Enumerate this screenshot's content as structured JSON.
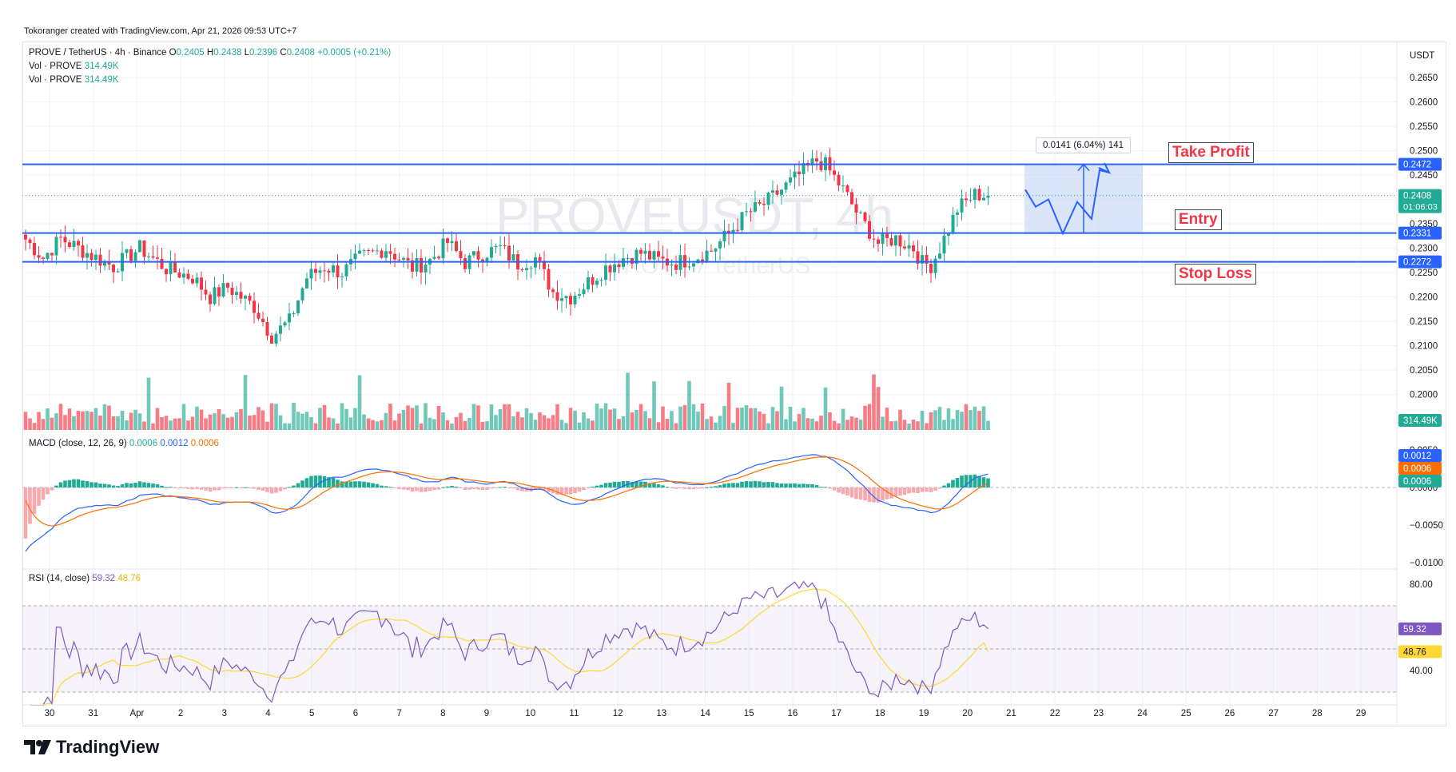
{
  "header": "Tokoranger created with TradingView.com, Apr 21, 2026 09:53 UTC+7",
  "brand": "TradingView",
  "watermark": "PROVEUSDT, 4h",
  "watermark_sub": "PROVE / TetherUS",
  "legend": {
    "symbol": "PROVE / TetherUS · 4h · Binance",
    "O": "0.2405",
    "H": "0.2438",
    "L": "0.2396",
    "C": "0.2408",
    "change": "+0.0005 (+0.21%)",
    "vol1_label": "Vol · PROVE",
    "vol1_value": "314.49K",
    "vol2_label": "Vol · PROVE",
    "vol2_value": "314.49K",
    "macd_label": "MACD (close, 12, 26, 9)",
    "macd_hist": "0.0006",
    "macd_line": "0.0012",
    "macd_signal": "0.0006",
    "rsi_label": "RSI (14, close)",
    "rsi_value": "59.32",
    "rsi_ma": "48.76"
  },
  "annotations": {
    "take_profit": "Take Profit",
    "entry": "Entry",
    "stop_loss": "Stop Loss",
    "measure": "0.0141 (6.04%) 141"
  },
  "price_tags": {
    "currency": "USDT",
    "tp": "0.2472",
    "entry": "0.2331",
    "sl": "0.2272",
    "last": "0.2408",
    "countdown": "01:06:03",
    "volume": "314.49K"
  },
  "macd_tags": {
    "macd": "0.0012",
    "signal": "0.0006",
    "hist": "0.0006"
  },
  "rsi_tags": {
    "rsi": "59.32",
    "ma": "48.76"
  },
  "colors": {
    "up": "#22ab94",
    "down": "#f23645",
    "level": "#2962ff",
    "macd": "#2962ff",
    "signal": "#ff6d00",
    "rsi": "#7e57c2",
    "rsi_ma": "#fdd835"
  },
  "chart_data": {
    "type": "candlestick",
    "price_axis": [
      "0.2650",
      "0.2600",
      "0.2550",
      "0.2500",
      "0.2450",
      "0.2400",
      "0.2350",
      "0.2300",
      "0.2250",
      "0.2200",
      "0.2150",
      "0.2100",
      "0.2050",
      "0.2000"
    ],
    "macd_axis": [
      "0.0050",
      "0.0000",
      "−0.0050",
      "−0.0100"
    ],
    "rsi_axis": [
      "80.00",
      "40.00"
    ],
    "x_labels": [
      "30",
      "31",
      "Apr",
      "2",
      "3",
      "4",
      "5",
      "6",
      "7",
      "8",
      "9",
      "10",
      "11",
      "12",
      "13",
      "14",
      "15",
      "16",
      "17",
      "18",
      "19",
      "20",
      "21",
      "22",
      "23",
      "24",
      "25",
      "26",
      "27",
      "28",
      "29"
    ],
    "levels": {
      "take_profit": 0.2472,
      "entry": 0.2331,
      "stop_loss": 0.2272
    },
    "close_anchors": [
      [
        0,
        0.2318
      ],
      [
        4,
        0.228
      ],
      [
        8,
        0.232
      ],
      [
        14,
        0.229
      ],
      [
        20,
        0.2262
      ],
      [
        26,
        0.23
      ],
      [
        32,
        0.2258
      ],
      [
        38,
        0.224
      ],
      [
        42,
        0.22
      ],
      [
        46,
        0.222
      ],
      [
        52,
        0.218
      ],
      [
        56,
        0.212
      ],
      [
        60,
        0.215
      ],
      [
        64,
        0.224
      ],
      [
        68,
        0.2262
      ],
      [
        72,
        0.225
      ],
      [
        76,
        0.228
      ],
      [
        82,
        0.23
      ],
      [
        88,
        0.226
      ],
      [
        92,
        0.2275
      ],
      [
        96,
        0.2312
      ],
      [
        100,
        0.227
      ],
      [
        104,
        0.229
      ],
      [
        108,
        0.23
      ],
      [
        112,
        0.2268
      ],
      [
        116,
        0.228
      ],
      [
        120,
        0.221
      ],
      [
        124,
        0.22
      ],
      [
        128,
        0.223
      ],
      [
        132,
        0.226
      ],
      [
        136,
        0.228
      ],
      [
        140,
        0.229
      ],
      [
        144,
        0.2275
      ],
      [
        148,
        0.227
      ],
      [
        152,
        0.228
      ],
      [
        156,
        0.2295
      ],
      [
        160,
        0.233
      ],
      [
        164,
        0.237
      ],
      [
        168,
        0.239
      ],
      [
        172,
        0.242
      ],
      [
        176,
        0.245
      ],
      [
        180,
        0.248
      ],
      [
        182,
        0.247
      ],
      [
        186,
        0.242
      ],
      [
        190,
        0.236
      ],
      [
        194,
        0.231
      ],
      [
        198,
        0.232
      ],
      [
        202,
        0.23
      ],
      [
        204,
        0.227
      ],
      [
        206,
        0.2265
      ],
      [
        208,
        0.23
      ],
      [
        212,
        0.238
      ],
      [
        216,
        0.241
      ],
      [
        219,
        0.2408
      ]
    ],
    "volume_last": "314.49K",
    "rsi": {
      "value": 59.32,
      "ma": 48.76,
      "upper": 70,
      "mid": 50,
      "lower": 30
    },
    "macd": {
      "macd": 0.0012,
      "signal": 0.0006,
      "hist": 0.0006
    }
  }
}
